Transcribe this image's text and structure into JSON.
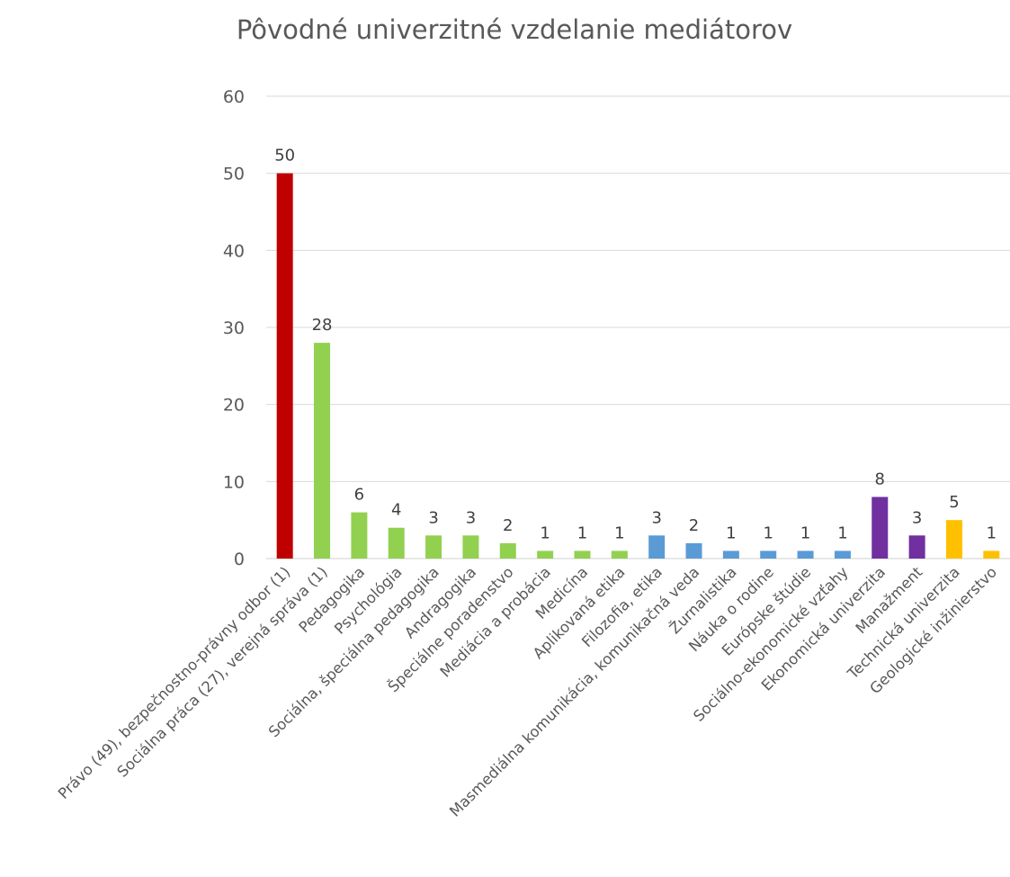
{
  "chart_data": {
    "type": "bar",
    "title": "Pôvodné univerzitné vzdelanie mediátorov",
    "xlabel": "",
    "ylabel": "",
    "ylim": [
      0,
      60
    ],
    "yticks": [
      0,
      10,
      20,
      30,
      40,
      50,
      60
    ],
    "grid": true,
    "legend": "none",
    "categories": [
      "Právo (49), bezpečnostno-právny odbor (1)",
      "Sociálna práca (27), verejná správa (1)",
      "Pedagogika",
      "Psychológia",
      "Sociálna, špeciálna pedagogika",
      "Andragogika",
      "Špeciálne poradenstvo",
      "Mediácia a probácia",
      "Medicína",
      "Aplikovaná etika",
      "Filozofia, etika",
      "Masmediálna komunikácia, komunikačná veda",
      "Žurnalistika",
      "Náuka o rodine",
      "Európske štúdie",
      "Sociálno-ekonomické vzťahy",
      "Ekonomická univerzita",
      "Manažment",
      "Technická univerzita",
      "Geologické inžinierstvo"
    ],
    "values": [
      50,
      28,
      6,
      4,
      3,
      3,
      2,
      1,
      1,
      1,
      3,
      2,
      1,
      1,
      1,
      1,
      8,
      3,
      5,
      1
    ],
    "colors": [
      "#c00000",
      "#92d050",
      "#92d050",
      "#92d050",
      "#92d050",
      "#92d050",
      "#92d050",
      "#92d050",
      "#92d050",
      "#92d050",
      "#5b9bd5",
      "#5b9bd5",
      "#5b9bd5",
      "#5b9bd5",
      "#5b9bd5",
      "#5b9bd5",
      "#7030a0",
      "#7030a0",
      "#ffc000",
      "#ffc000"
    ]
  }
}
